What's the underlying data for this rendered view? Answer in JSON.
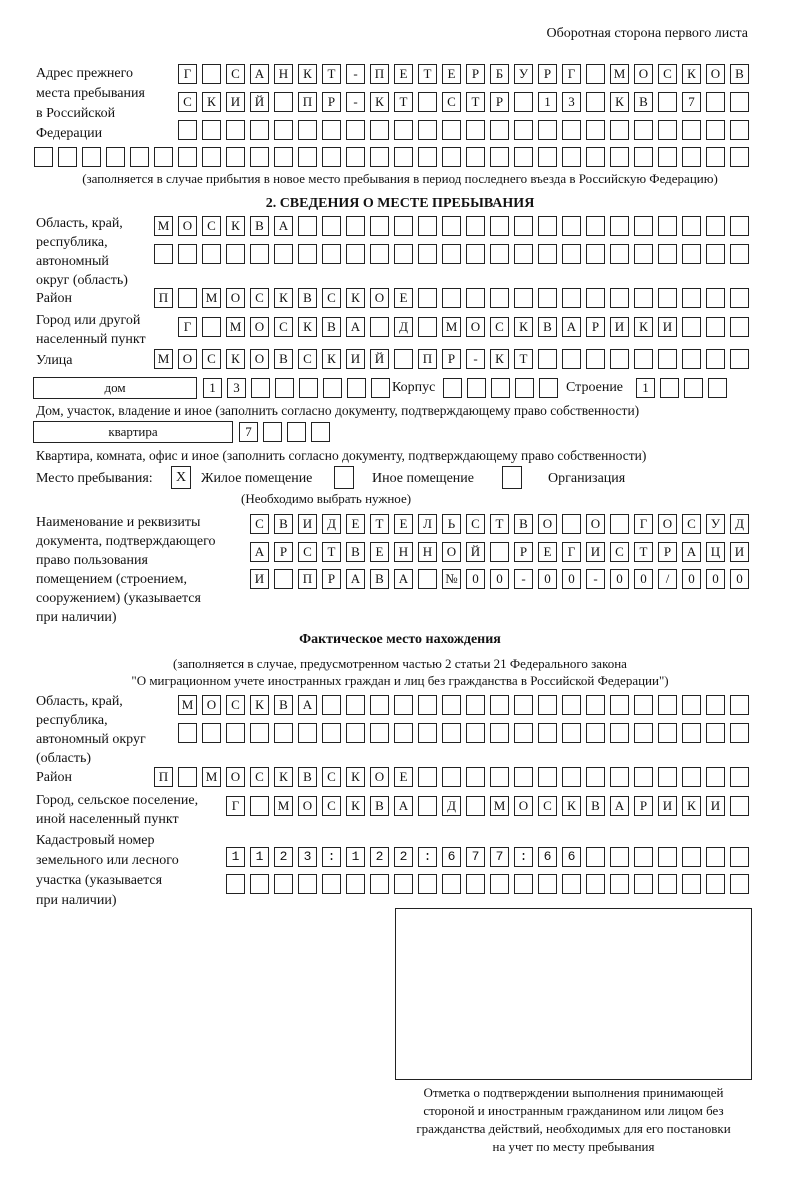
{
  "header": {
    "page_side": "Оборотная сторона первого листа"
  },
  "prev_address": {
    "label": [
      "Адрес прежнего",
      "места пребывания",
      "в Российской",
      "Федерации"
    ],
    "rows": [
      "Г САНКТ-ПЕТЕРБУРГ МОСКОВ",
      "СКИЙ ПР-КТ СТР 13 КВ 7  ",
      "                        ",
      "                              "
    ],
    "note": "(заполняется в случае прибытия в новое место пребывания в период последнего въезда в Российскую Федерацию)"
  },
  "section2": {
    "title": "2. СВЕДЕНИЯ О МЕСТЕ ПРЕБЫВАНИЯ",
    "region_label": [
      "Область, край,",
      "республика,",
      "автономный",
      "округ (область)"
    ],
    "region_rows": [
      "МОСКВА                   ",
      "                         "
    ],
    "district_label": "Район",
    "district_row": "П МОСКВСКОЕ              ",
    "city_label": [
      "Город или другой",
      "населенный пункт"
    ],
    "city_row": "Г МОСКВА Д МОСКВАРИКИ   ",
    "street_label": "Улица",
    "street_row": "МОСКОВСКИЙ ПР-КТ         ",
    "house_type": "дом",
    "house_row": "13      ",
    "korpus_label": "Корпус",
    "korpus_row": "     ",
    "stroenie_label": "Строение",
    "stroenie_row": "1   ",
    "house_note": "Дом, участок, владение и иное (заполнить согласно документу, подтверждающему право собственности)",
    "flat_type": "квартира",
    "flat_row": "7   ",
    "flat_note": "Квартира, комната, офис и иное (заполнить согласно документу, подтверждающему право собственности)",
    "place_label": "Место пребывания:",
    "options": [
      {
        "label": "Жилое помещение",
        "checked": true,
        "mark": "X"
      },
      {
        "label": "Иное помещение",
        "checked": false,
        "mark": ""
      },
      {
        "label": "Организация",
        "checked": false,
        "mark": ""
      }
    ],
    "choose_note": "(Необходимо выбрать нужное)",
    "doc_label": [
      "Наименование и реквизиты",
      "документа, подтверждающего",
      "право пользования",
      "помещением (строением,",
      "сооружением) (указывается",
      "при наличии)"
    ],
    "doc_rows": [
      "СВИДЕТЕЛЬСТВО О ГОСУД",
      "АРСТВЕННОЙ РЕГИСТРАЦИ",
      "И ПРАВА №00-00-00/000"
    ]
  },
  "actual": {
    "title": "Фактическое место нахождения",
    "note": [
      "(заполняется в случае, предусмотренном частью 2 статьи 21 Федерального закона",
      "\"О миграционном учете иностранных граждан и лиц без гражданства в Российской Федерации\")"
    ],
    "region_label": [
      "Область, край,",
      "республика,",
      "автономный округ",
      "(область)"
    ],
    "region_rows": [
      "МОСКВА                  ",
      "                        "
    ],
    "district_label": "Район",
    "district_row": "П МОСКВСКОЕ              ",
    "city_label": [
      "Город, сельское поселение,",
      "иной населенный пункт"
    ],
    "city_row": "Г МОСКВА Д МОСКВАРИКИ ",
    "cadastre_label": [
      "Кадастровый номер",
      "земельного или лесного",
      "участка (указывается",
      "при наличии)"
    ],
    "cadastre_rows": [
      "1123:122:677:66       ",
      "                      "
    ]
  },
  "stamp": {
    "caption": [
      "Отметка о подтверждении выполнения принимающей",
      "стороной и иностранным гражданином или лицом без",
      "гражданства действий, необходимых для его постановки",
      "на учет по месту пребывания"
    ]
  }
}
